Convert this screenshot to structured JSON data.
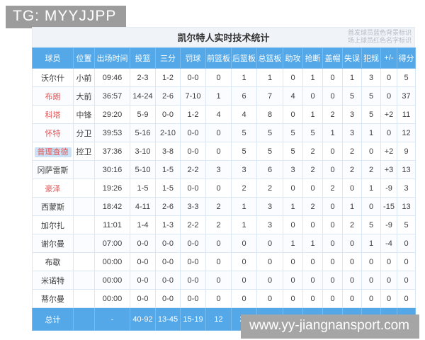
{
  "watermarks": {
    "tg": "TG: MYYJJPP",
    "site": "www.yy-jiangnansport.com"
  },
  "table": {
    "title": "凯尔特人实时技术统计",
    "legend_line1": "首发球员蓝色背景标识",
    "legend_line2": "场上球员红色名字标识",
    "columns": [
      "球员",
      "位置",
      "出场时间",
      "投篮",
      "三分",
      "罚球",
      "前篮板",
      "后篮板",
      "总篮板",
      "助攻",
      "抢断",
      "盖帽",
      "失误",
      "犯规",
      "+/-",
      "得分"
    ],
    "rows": [
      {
        "name": "沃尔什",
        "oncourt": false,
        "starter": false,
        "cells": [
          "小前",
          "09:46",
          "2-3",
          "1-2",
          "0-0",
          "0",
          "1",
          "1",
          "0",
          "1",
          "0",
          "1",
          "3",
          "0",
          "5"
        ]
      },
      {
        "name": "布朗",
        "oncourt": true,
        "starter": false,
        "cells": [
          "大前",
          "36:57",
          "14-24",
          "2-6",
          "7-10",
          "1",
          "6",
          "7",
          "4",
          "0",
          "0",
          "5",
          "5",
          "0",
          "37"
        ]
      },
      {
        "name": "科塔",
        "oncourt": true,
        "starter": false,
        "cells": [
          "中锋",
          "29:20",
          "5-9",
          "0-0",
          "1-2",
          "4",
          "4",
          "8",
          "0",
          "1",
          "2",
          "3",
          "5",
          "+2",
          "11"
        ]
      },
      {
        "name": "怀特",
        "oncourt": true,
        "starter": false,
        "cells": [
          "分卫",
          "39:53",
          "5-16",
          "2-10",
          "0-0",
          "0",
          "5",
          "5",
          "5",
          "5",
          "1",
          "3",
          "1",
          "0",
          "12"
        ]
      },
      {
        "name": "普理查德",
        "oncourt": true,
        "starter": true,
        "cells": [
          "控卫",
          "37:36",
          "3-10",
          "3-8",
          "0-0",
          "0",
          "5",
          "5",
          "5",
          "2",
          "0",
          "2",
          "0",
          "+2",
          "9"
        ]
      },
      {
        "name": "冈萨雷斯",
        "oncourt": false,
        "starter": false,
        "cells": [
          "",
          "30:16",
          "5-10",
          "1-5",
          "2-2",
          "3",
          "3",
          "6",
          "3",
          "2",
          "0",
          "2",
          "2",
          "+3",
          "13"
        ]
      },
      {
        "name": "豪泽",
        "oncourt": true,
        "starter": false,
        "cells": [
          "",
          "19:26",
          "1-5",
          "1-5",
          "0-0",
          "0",
          "2",
          "2",
          "0",
          "0",
          "2",
          "0",
          "1",
          "-9",
          "3"
        ]
      },
      {
        "name": "西蒙斯",
        "oncourt": false,
        "starter": false,
        "cells": [
          "",
          "18:42",
          "4-11",
          "2-6",
          "3-3",
          "2",
          "1",
          "3",
          "1",
          "2",
          "0",
          "1",
          "0",
          "-15",
          "13"
        ]
      },
      {
        "name": "加尔扎",
        "oncourt": false,
        "starter": false,
        "cells": [
          "",
          "11:01",
          "1-4",
          "1-3",
          "2-2",
          "2",
          "1",
          "3",
          "0",
          "0",
          "0",
          "2",
          "5",
          "-9",
          "5"
        ]
      },
      {
        "name": "谢尔曼",
        "oncourt": false,
        "starter": false,
        "cells": [
          "",
          "07:00",
          "0-0",
          "0-0",
          "0-0",
          "0",
          "0",
          "0",
          "1",
          "1",
          "0",
          "0",
          "1",
          "-4",
          "0"
        ]
      },
      {
        "name": "布歇",
        "oncourt": false,
        "starter": false,
        "cells": [
          "",
          "00:00",
          "0-0",
          "0-0",
          "0-0",
          "0",
          "0",
          "0",
          "0",
          "0",
          "0",
          "0",
          "0",
          "0",
          "0"
        ]
      },
      {
        "name": "米诺特",
        "oncourt": false,
        "starter": false,
        "cells": [
          "",
          "00:00",
          "0-0",
          "0-0",
          "0-0",
          "0",
          "0",
          "0",
          "0",
          "0",
          "0",
          "0",
          "0",
          "0",
          "0"
        ]
      },
      {
        "name": "蒂尔曼",
        "oncourt": false,
        "starter": false,
        "cells": [
          "",
          "00:00",
          "0-0",
          "0-0",
          "0-0",
          "0",
          "0",
          "0",
          "0",
          "0",
          "0",
          "0",
          "0",
          "0",
          "0"
        ]
      }
    ],
    "totals": [
      "总计",
      "",
      "-",
      "40-92",
      "13-45",
      "15-19",
      "12",
      "28",
      "40",
      "19",
      "14",
      "5",
      "19",
      "23",
      "",
      "108"
    ]
  },
  "colors": {
    "header_blue": "#55a8e8",
    "oncourt_red": "#e25757",
    "starter_bg": "#cbe2f6",
    "watermark_gray": "#9c9c9c"
  }
}
